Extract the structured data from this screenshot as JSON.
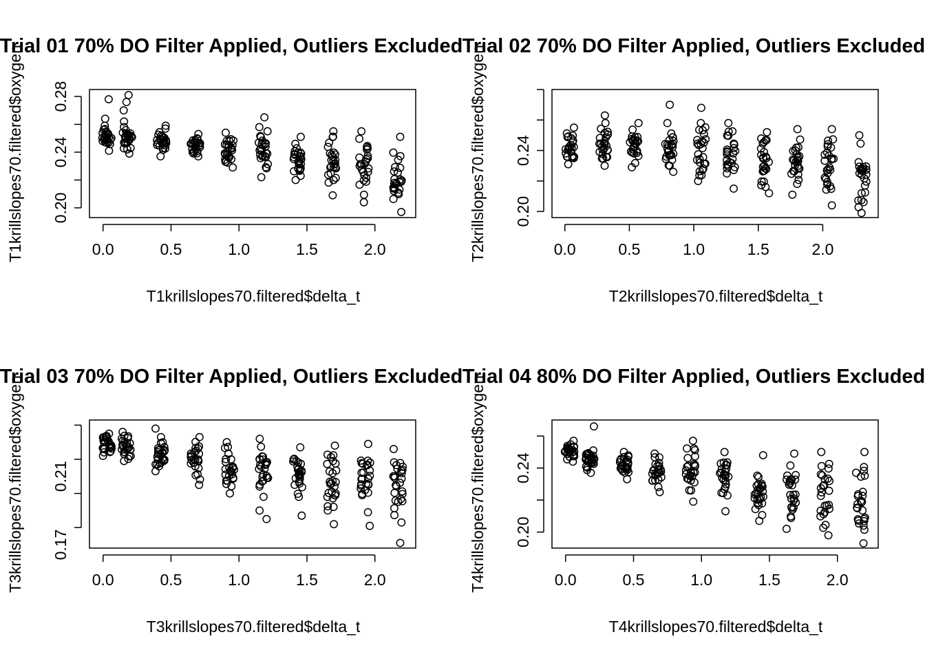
{
  "chart_data": [
    {
      "type": "scatter",
      "title": "Trial 01 70% DO Filter Applied, Outliers Excluded",
      "xlabel": "T1krillslopes70.filtered$delta_t",
      "ylabel": "T1krillslopes70.filtered$oxygen",
      "xlim": [
        -0.1,
        2.3
      ],
      "ylim": [
        0.193,
        0.285
      ],
      "xticks": [
        "0.0",
        "0.5",
        "1.0",
        "1.5",
        "2.0"
      ],
      "yticks": [
        "0.20",
        "0.24",
        "0.28"
      ],
      "marker": "open-circle",
      "groups": [
        {
          "x": 0.03,
          "y_min": 0.241,
          "y_max": 0.259,
          "outliers": [
            0.278,
            0.264
          ]
        },
        {
          "x": 0.18,
          "y_min": 0.239,
          "y_max": 0.258,
          "outliers": [
            0.281,
            0.276,
            0.27,
            0.262
          ]
        },
        {
          "x": 0.43,
          "y_min": 0.237,
          "y_max": 0.259,
          "outliers": []
        },
        {
          "x": 0.68,
          "y_min": 0.237,
          "y_max": 0.253,
          "outliers": []
        },
        {
          "x": 0.93,
          "y_min": 0.229,
          "y_max": 0.254,
          "outliers": []
        },
        {
          "x": 1.18,
          "y_min": 0.222,
          "y_max": 0.258,
          "outliers": [
            0.265
          ]
        },
        {
          "x": 1.43,
          "y_min": 0.22,
          "y_max": 0.251,
          "outliers": []
        },
        {
          "x": 1.68,
          "y_min": 0.209,
          "y_max": 0.255,
          "outliers": []
        },
        {
          "x": 1.92,
          "y_min": 0.204,
          "y_max": 0.255,
          "outliers": []
        },
        {
          "x": 2.17,
          "y_min": 0.197,
          "y_max": 0.251,
          "outliers": []
        }
      ]
    },
    {
      "type": "scatter",
      "title": "Trial 02 70% DO Filter Applied, Outliers Excluded",
      "xlabel": "T2krillslopes70.filtered$delta_t",
      "ylabel": "T2krillslopes70.filtered$oxygen",
      "xlim": [
        -0.1,
        2.43
      ],
      "ylim": [
        0.196,
        0.28
      ],
      "xticks": [
        "0.0",
        "0.5",
        "1.0",
        "1.5",
        "2.0"
      ],
      "yticks": [
        "0.20",
        "0.24"
      ],
      "marker": "open-circle",
      "groups": [
        {
          "x": 0.04,
          "y_min": 0.231,
          "y_max": 0.255,
          "outliers": []
        },
        {
          "x": 0.3,
          "y_min": 0.23,
          "y_max": 0.258,
          "outliers": [
            0.263
          ]
        },
        {
          "x": 0.54,
          "y_min": 0.229,
          "y_max": 0.258,
          "outliers": []
        },
        {
          "x": 0.81,
          "y_min": 0.226,
          "y_max": 0.258,
          "outliers": [
            0.27
          ]
        },
        {
          "x": 1.06,
          "y_min": 0.22,
          "y_max": 0.258,
          "outliers": [
            0.268
          ]
        },
        {
          "x": 1.29,
          "y_min": 0.215,
          "y_max": 0.258,
          "outliers": []
        },
        {
          "x": 1.55,
          "y_min": 0.212,
          "y_max": 0.252,
          "outliers": []
        },
        {
          "x": 1.79,
          "y_min": 0.211,
          "y_max": 0.254,
          "outliers": []
        },
        {
          "x": 2.05,
          "y_min": 0.204,
          "y_max": 0.254,
          "outliers": []
        },
        {
          "x": 2.31,
          "y_min": 0.199,
          "y_max": 0.25,
          "outliers": []
        }
      ]
    },
    {
      "type": "scatter",
      "title": "Trial 03 70% DO Filter Applied, Outliers Excluded",
      "xlabel": "T3krillslopes70.filtered$delta_t",
      "ylabel": "T3krillslopes70.filtered$oxygen",
      "xlim": [
        -0.1,
        2.3
      ],
      "ylim": [
        0.168,
        0.243
      ],
      "xticks": [
        "0.0",
        "0.5",
        "1.0",
        "1.5",
        "2.0"
      ],
      "yticks": [
        "0.17",
        "0.21"
      ],
      "marker": "open-circle",
      "groups": [
        {
          "x": 0.03,
          "y_min": 0.222,
          "y_max": 0.235,
          "outliers": []
        },
        {
          "x": 0.17,
          "y_min": 0.219,
          "y_max": 0.236,
          "outliers": []
        },
        {
          "x": 0.42,
          "y_min": 0.213,
          "y_max": 0.233,
          "outliers": [
            0.238
          ]
        },
        {
          "x": 0.68,
          "y_min": 0.205,
          "y_max": 0.233,
          "outliers": []
        },
        {
          "x": 0.93,
          "y_min": 0.2,
          "y_max": 0.23,
          "outliers": []
        },
        {
          "x": 1.18,
          "y_min": 0.198,
          "y_max": 0.232,
          "outliers": [
            0.185,
            0.19
          ]
        },
        {
          "x": 1.43,
          "y_min": 0.198,
          "y_max": 0.227,
          "outliers": [
            0.187
          ]
        },
        {
          "x": 1.68,
          "y_min": 0.19,
          "y_max": 0.228,
          "outliers": [
            0.182
          ]
        },
        {
          "x": 1.93,
          "y_min": 0.189,
          "y_max": 0.229,
          "outliers": [
            0.181
          ]
        },
        {
          "x": 2.17,
          "y_min": 0.183,
          "y_max": 0.226,
          "outliers": [
            0.171
          ]
        }
      ]
    },
    {
      "type": "scatter",
      "title": "Trial 04 80% DO Filter Applied, Outliers Excluded",
      "xlabel": "T4krillslopes70.filtered$delta_t",
      "ylabel": "T4krillslopes70.filtered$oxygen",
      "xlim": [
        -0.1,
        2.3
      ],
      "ylim": [
        0.19,
        0.27
      ],
      "xticks": [
        "0.0",
        "0.5",
        "1.0",
        "1.5",
        "2.0"
      ],
      "yticks": [
        "0.20",
        "0.24"
      ],
      "marker": "open-circle",
      "groups": [
        {
          "x": 0.03,
          "y_min": 0.244,
          "y_max": 0.257,
          "outliers": []
        },
        {
          "x": 0.18,
          "y_min": 0.237,
          "y_max": 0.251,
          "outliers": [
            0.266
          ]
        },
        {
          "x": 0.43,
          "y_min": 0.233,
          "y_max": 0.25,
          "outliers": []
        },
        {
          "x": 0.67,
          "y_min": 0.225,
          "y_max": 0.249,
          "outliers": []
        },
        {
          "x": 0.92,
          "y_min": 0.219,
          "y_max": 0.257,
          "outliers": []
        },
        {
          "x": 1.17,
          "y_min": 0.213,
          "y_max": 0.25,
          "outliers": []
        },
        {
          "x": 1.42,
          "y_min": 0.207,
          "y_max": 0.248,
          "outliers": [
            0.229
          ]
        },
        {
          "x": 1.66,
          "y_min": 0.202,
          "y_max": 0.249,
          "outliers": []
        },
        {
          "x": 1.91,
          "y_min": 0.198,
          "y_max": 0.25,
          "outliers": []
        },
        {
          "x": 2.17,
          "y_min": 0.193,
          "y_max": 0.25,
          "outliers": []
        }
      ]
    }
  ]
}
